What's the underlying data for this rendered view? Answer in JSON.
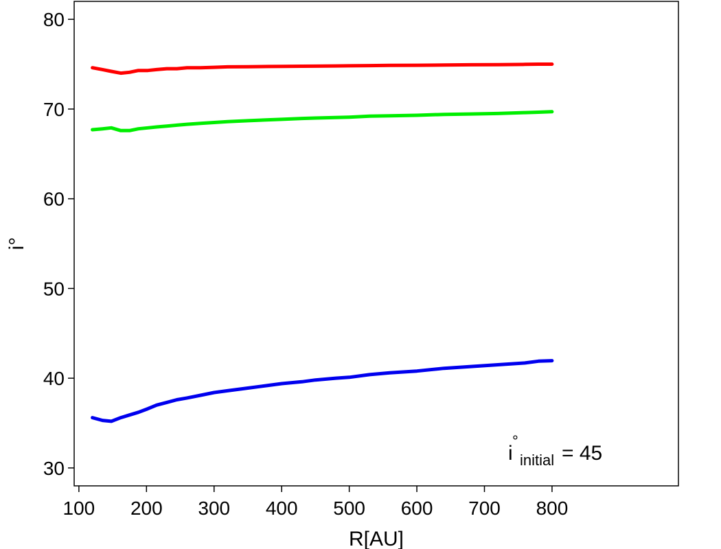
{
  "chart_data": {
    "type": "line",
    "title": "",
    "xlabel": "R[AU]",
    "ylabel": "i°",
    "xlim": [
      93,
      987
    ],
    "ylim": [
      28,
      82
    ],
    "xticks": [
      100,
      200,
      300,
      400,
      500,
      600,
      700,
      800
    ],
    "yticks": [
      30,
      40,
      50,
      60,
      70,
      80
    ],
    "grid": false,
    "annotation": {
      "base": "i",
      "sup": "°",
      "sub": "initial",
      "eq": "= 45"
    },
    "series": [
      {
        "color": "#ff0000",
        "x": [
          120,
          135,
          148,
          162,
          175,
          188,
          202,
          215,
          230,
          245,
          260,
          280,
          300,
          320,
          350,
          380,
          400,
          430,
          450,
          480,
          500,
          530,
          560,
          600,
          640,
          680,
          720,
          760,
          780,
          800
        ],
        "y": [
          74.6,
          74.4,
          74.2,
          74.0,
          74.1,
          74.3,
          74.3,
          74.4,
          74.5,
          74.5,
          74.6,
          74.6,
          74.65,
          74.7,
          74.72,
          74.74,
          74.75,
          74.77,
          74.78,
          74.8,
          74.82,
          74.84,
          74.86,
          74.88,
          74.9,
          74.93,
          74.95,
          74.98,
          75.0,
          75.0
        ]
      },
      {
        "color": "#00ee00",
        "x": [
          120,
          135,
          148,
          162,
          175,
          188,
          202,
          215,
          230,
          245,
          260,
          280,
          300,
          320,
          350,
          380,
          400,
          430,
          450,
          480,
          500,
          530,
          560,
          600,
          640,
          680,
          720,
          760,
          780,
          800
        ],
        "y": [
          67.7,
          67.8,
          67.9,
          67.6,
          67.6,
          67.8,
          67.9,
          68.0,
          68.1,
          68.2,
          68.3,
          68.4,
          68.5,
          68.6,
          68.7,
          68.8,
          68.85,
          68.95,
          69.0,
          69.05,
          69.1,
          69.2,
          69.25,
          69.3,
          69.4,
          69.45,
          69.5,
          69.6,
          69.65,
          69.7
        ]
      },
      {
        "color": "#0000ee",
        "x": [
          120,
          135,
          148,
          162,
          175,
          188,
          202,
          215,
          230,
          245,
          260,
          280,
          300,
          320,
          350,
          380,
          400,
          430,
          450,
          480,
          500,
          530,
          560,
          600,
          640,
          680,
          720,
          760,
          780,
          800
        ],
        "y": [
          35.6,
          35.3,
          35.2,
          35.6,
          35.9,
          36.2,
          36.6,
          37.0,
          37.3,
          37.6,
          37.8,
          38.1,
          38.4,
          38.6,
          38.9,
          39.2,
          39.4,
          39.6,
          39.8,
          40.0,
          40.1,
          40.4,
          40.6,
          40.8,
          41.1,
          41.3,
          41.5,
          41.7,
          41.9,
          41.95
        ]
      }
    ]
  }
}
